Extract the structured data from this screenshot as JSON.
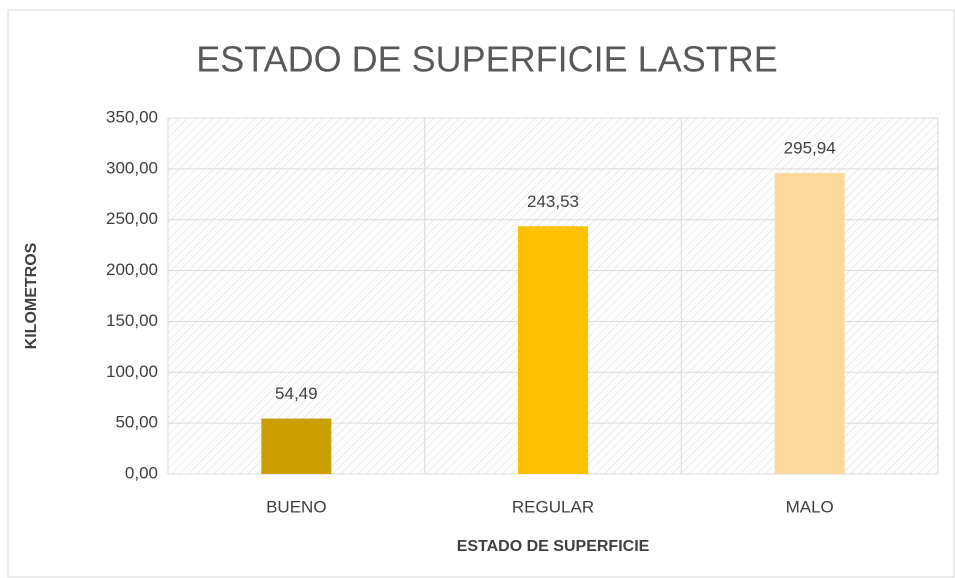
{
  "chart_data": {
    "type": "bar",
    "title": "ESTADO DE SUPERFICIE LASTRE",
    "x_label": "ESTADO DE SUPERFICIE",
    "y_label": "KILOMETROS",
    "categories": [
      "BUENO",
      "REGULAR",
      "MALO"
    ],
    "values": [
      54.49,
      243.53,
      295.94
    ],
    "value_labels": [
      "54,49",
      "243,53",
      "295,94"
    ],
    "colors": [
      "#cc9e00",
      "#ffc000",
      "#ffd89b"
    ],
    "ylim": [
      0,
      350
    ],
    "yticks": [
      {
        "value": 0,
        "label": "0,00"
      },
      {
        "value": 50,
        "label": "50,00"
      },
      {
        "value": 100,
        "label": "100,00"
      },
      {
        "value": 150,
        "label": "150,00"
      },
      {
        "value": 200,
        "label": "200,00"
      },
      {
        "value": 250,
        "label": "250,00"
      },
      {
        "value": 300,
        "label": "300,00"
      },
      {
        "value": 350,
        "label": "350,00"
      }
    ],
    "grid": true
  }
}
